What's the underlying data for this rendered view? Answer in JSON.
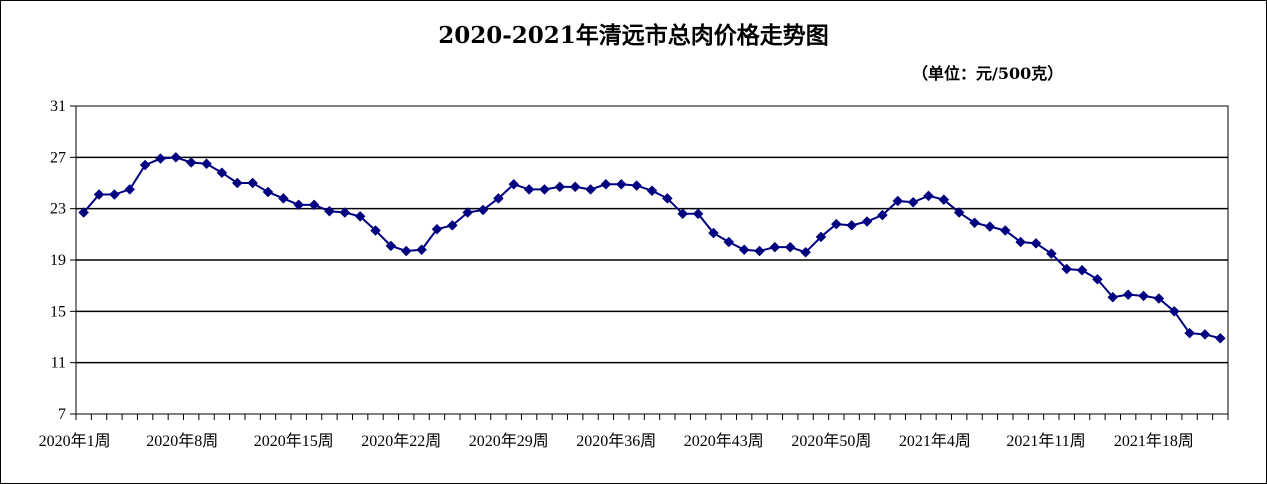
{
  "chart_data": {
    "type": "line",
    "title": "2020-2021年清远市总肉价格走势图",
    "subtitle": "（单位：元/500克）",
    "xlabel": "",
    "ylabel": "",
    "ylim": [
      7,
      31
    ],
    "y_ticks": [
      7,
      11,
      15,
      19,
      23,
      27,
      31
    ],
    "grid": true,
    "x_tick_labels": [
      "2020年1周",
      "2020年8周",
      "2020年15周",
      "2020年22周",
      "2020年29周",
      "2020年36周",
      "2020年43周",
      "2020年50周",
      "2021年4周",
      "2021年11周",
      "2021年18周"
    ],
    "series": [
      {
        "name": "",
        "color": "#000080",
        "values": [
          22.7,
          24.1,
          24.1,
          24.5,
          26.4,
          26.9,
          27.0,
          26.6,
          26.5,
          25.8,
          25.0,
          25.0,
          24.3,
          23.8,
          23.3,
          23.3,
          22.8,
          22.7,
          22.4,
          21.3,
          20.1,
          19.7,
          19.8,
          21.4,
          21.7,
          22.7,
          22.9,
          23.8,
          24.9,
          24.5,
          24.5,
          24.7,
          24.7,
          24.5,
          24.9,
          24.9,
          24.8,
          24.4,
          23.8,
          22.6,
          22.6,
          21.1,
          20.4,
          19.8,
          19.7,
          20.0,
          20.0,
          19.6,
          20.8,
          21.8,
          21.7,
          22.0,
          22.5,
          23.6,
          23.5,
          24.0,
          23.7,
          22.7,
          21.9,
          21.6,
          21.3,
          20.4,
          20.3,
          19.5,
          18.3,
          18.2,
          17.5,
          16.1,
          16.3,
          16.2,
          16.0,
          15.0,
          13.3,
          13.2,
          12.9
        ]
      }
    ]
  }
}
